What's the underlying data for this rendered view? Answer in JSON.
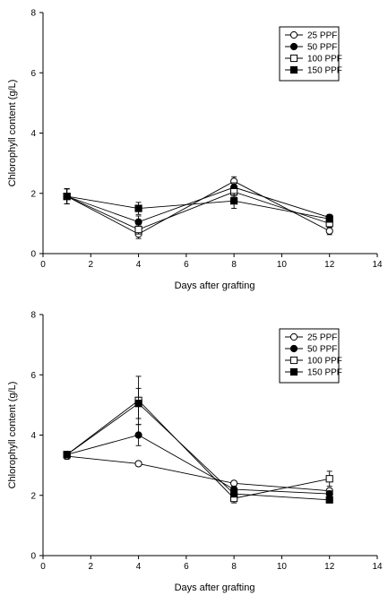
{
  "chart_data": [
    {
      "type": "line",
      "title": "",
      "xlabel": "Days after grafting",
      "ylabel": "Chlorophyll content (g/L)",
      "xlim": [
        0,
        14
      ],
      "ylim": [
        0,
        8
      ],
      "xticks": [
        0,
        2,
        4,
        6,
        8,
        10,
        12,
        14
      ],
      "yticks": [
        0,
        2,
        4,
        6,
        8
      ],
      "grid": false,
      "legend_position": "top-right",
      "x": [
        1,
        4,
        8,
        12
      ],
      "series": [
        {
          "name": "25 PPF",
          "marker": "open-circle",
          "values": [
            1.9,
            0.65,
            2.4,
            0.75
          ],
          "errors": [
            0.25,
            0.15,
            0.15,
            0.12
          ]
        },
        {
          "name": "50 PPF",
          "marker": "filled-circle",
          "values": [
            1.9,
            1.05,
            2.2,
            1.2
          ],
          "errors": [
            0.25,
            0.2,
            0.15,
            0.1
          ]
        },
        {
          "name": "100 PPF",
          "marker": "open-square",
          "values": [
            1.9,
            0.8,
            2.05,
            1.0
          ],
          "errors": [
            0.25,
            0.15,
            0.15,
            0.1
          ]
        },
        {
          "name": "150 PPF",
          "marker": "filled-square",
          "values": [
            1.9,
            1.5,
            1.75,
            1.15
          ],
          "errors": [
            0.25,
            0.2,
            0.25,
            0.1
          ]
        }
      ]
    },
    {
      "type": "line",
      "title": "",
      "xlabel": "Days after grafting",
      "ylabel": "Chlorophyll content (g/L)",
      "xlim": [
        0,
        14
      ],
      "ylim": [
        0,
        8
      ],
      "xticks": [
        0,
        2,
        4,
        6,
        8,
        10,
        12,
        14
      ],
      "yticks": [
        0,
        2,
        4,
        6,
        8
      ],
      "grid": false,
      "legend_position": "top-right",
      "x": [
        1,
        4,
        8,
        12
      ],
      "series": [
        {
          "name": "25 PPF",
          "marker": "open-circle",
          "values": [
            3.3,
            3.05,
            2.4,
            2.15
          ],
          "errors": [
            0.1,
            0.07,
            0.05,
            0.05
          ]
        },
        {
          "name": "50 PPF",
          "marker": "filled-circle",
          "values": [
            3.35,
            4.0,
            2.2,
            2.05
          ],
          "errors": [
            0.1,
            0.35,
            0.1,
            0.1
          ]
        },
        {
          "name": "100 PPF",
          "marker": "open-square",
          "values": [
            3.35,
            5.15,
            1.9,
            2.55
          ],
          "errors": [
            0.1,
            0.8,
            0.15,
            0.25
          ]
        },
        {
          "name": "150 PPF",
          "marker": "filled-square",
          "values": [
            3.35,
            5.05,
            2.05,
            1.85
          ],
          "errors": [
            0.1,
            0.5,
            0.1,
            0.05
          ]
        }
      ]
    }
  ]
}
